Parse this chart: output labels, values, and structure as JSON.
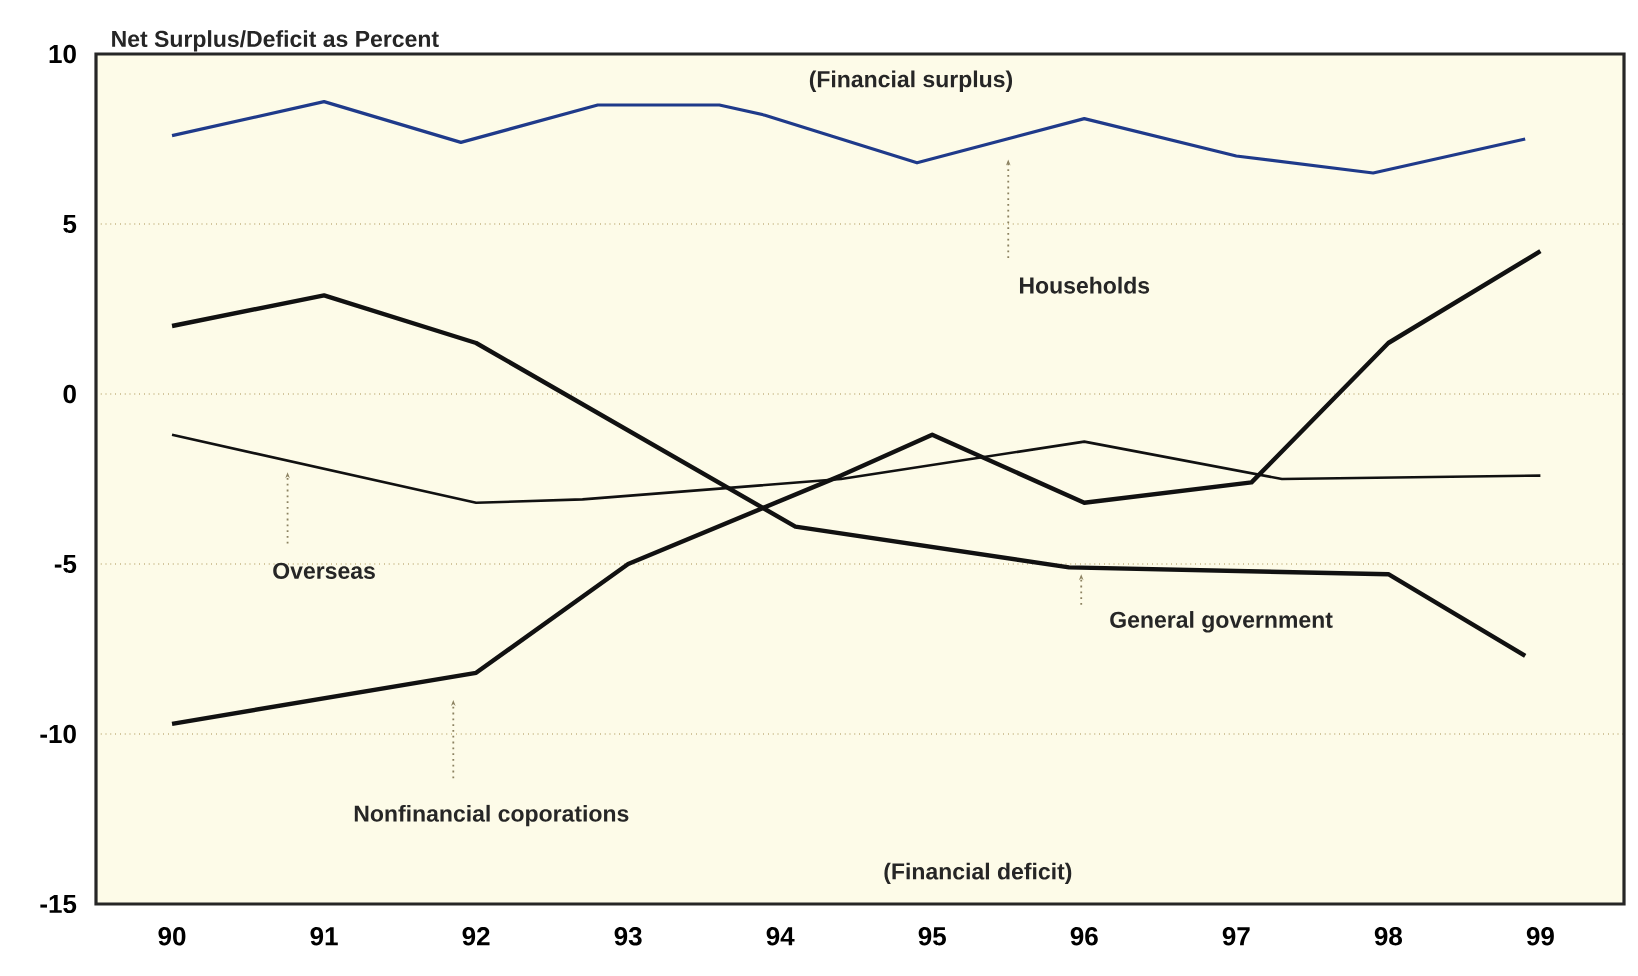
{
  "chart_data": {
    "type": "line",
    "ylabel": "Net Surplus/Deficit as Percent",
    "annotations": [
      "(Financial surplus)",
      "(Financial deficit)"
    ],
    "xlim": [
      89.5,
      99.55
    ],
    "xticks": [
      90,
      91,
      92,
      93,
      94,
      95,
      96,
      97,
      98,
      99
    ],
    "ylim": [
      -15,
      10
    ],
    "yticks": [
      -15,
      -10,
      -5,
      0,
      5,
      10
    ],
    "grid": "y",
    "legend": false,
    "line_style": "solid",
    "series": [
      {
        "name": "Households",
        "color": "#1f3a8a",
        "x": [
          90,
          91,
          91.9,
          92.8,
          93.6,
          93.9,
          94.9,
          96,
          97,
          97.9,
          98.9
        ],
        "values": [
          7.6,
          8.6,
          7.4,
          8.5,
          8.5,
          8.2,
          6.8,
          8.1,
          7.0,
          6.5,
          7.5
        ]
      },
      {
        "name": "General government",
        "color": "#111111",
        "x": [
          90,
          91,
          92,
          94.1,
          95.9,
          98,
          98.9
        ],
        "values": [
          2.0,
          2.9,
          1.5,
          -3.9,
          -5.1,
          -5.3,
          -7.7
        ]
      },
      {
        "name": "Nonfinancial coporations",
        "color": "#111111",
        "x": [
          90,
          92,
          93,
          94.4,
          95,
          96,
          97.1,
          98,
          99
        ],
        "values": [
          -9.7,
          -8.2,
          -5.0,
          -2.4,
          -1.2,
          -3.2,
          -2.6,
          1.5,
          4.2
        ]
      },
      {
        "name": "Overseas",
        "color": "#111111",
        "x": [
          90,
          92,
          92.7,
          94.4,
          96,
          97.3,
          99
        ],
        "values": [
          -1.2,
          -3.2,
          -3.1,
          -2.5,
          -1.4,
          -2.5,
          -2.4
        ]
      }
    ]
  }
}
